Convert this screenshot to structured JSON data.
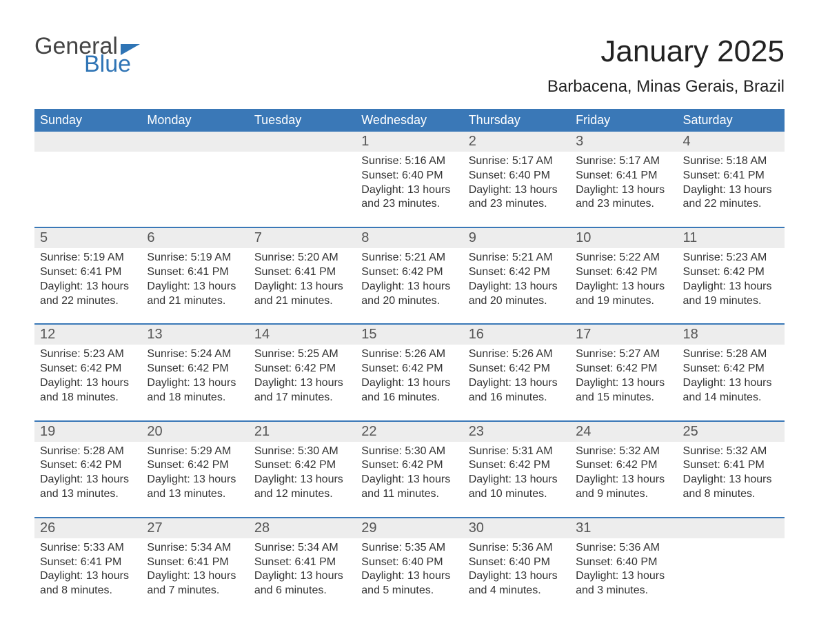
{
  "logo": {
    "line1": "General",
    "line2": "Blue"
  },
  "title": "January 2025",
  "location": "Barbacena, Minas Gerais, Brazil",
  "colors": {
    "header_bg": "#3a78b7",
    "header_text": "#ffffff",
    "daynum_bg": "#ededed",
    "daynum_text": "#555555",
    "body_text": "#333333",
    "rule": "#3a78b7",
    "logo_gray": "#444444",
    "logo_blue": "#2f74b5"
  },
  "fonts": {
    "title_pt": 44,
    "location_pt": 24,
    "dow_pt": 18,
    "daynum_pt": 20,
    "body_pt": 16
  },
  "dow": [
    "Sunday",
    "Monday",
    "Tuesday",
    "Wednesday",
    "Thursday",
    "Friday",
    "Saturday"
  ],
  "weeks": [
    [
      null,
      null,
      null,
      {
        "n": "1",
        "sr": "5:16 AM",
        "ss": "6:40 PM",
        "dl": "13 hours and 23 minutes."
      },
      {
        "n": "2",
        "sr": "5:17 AM",
        "ss": "6:40 PM",
        "dl": "13 hours and 23 minutes."
      },
      {
        "n": "3",
        "sr": "5:17 AM",
        "ss": "6:41 PM",
        "dl": "13 hours and 23 minutes."
      },
      {
        "n": "4",
        "sr": "5:18 AM",
        "ss": "6:41 PM",
        "dl": "13 hours and 22 minutes."
      }
    ],
    [
      {
        "n": "5",
        "sr": "5:19 AM",
        "ss": "6:41 PM",
        "dl": "13 hours and 22 minutes."
      },
      {
        "n": "6",
        "sr": "5:19 AM",
        "ss": "6:41 PM",
        "dl": "13 hours and 21 minutes."
      },
      {
        "n": "7",
        "sr": "5:20 AM",
        "ss": "6:41 PM",
        "dl": "13 hours and 21 minutes."
      },
      {
        "n": "8",
        "sr": "5:21 AM",
        "ss": "6:42 PM",
        "dl": "13 hours and 20 minutes."
      },
      {
        "n": "9",
        "sr": "5:21 AM",
        "ss": "6:42 PM",
        "dl": "13 hours and 20 minutes."
      },
      {
        "n": "10",
        "sr": "5:22 AM",
        "ss": "6:42 PM",
        "dl": "13 hours and 19 minutes."
      },
      {
        "n": "11",
        "sr": "5:23 AM",
        "ss": "6:42 PM",
        "dl": "13 hours and 19 minutes."
      }
    ],
    [
      {
        "n": "12",
        "sr": "5:23 AM",
        "ss": "6:42 PM",
        "dl": "13 hours and 18 minutes."
      },
      {
        "n": "13",
        "sr": "5:24 AM",
        "ss": "6:42 PM",
        "dl": "13 hours and 18 minutes."
      },
      {
        "n": "14",
        "sr": "5:25 AM",
        "ss": "6:42 PM",
        "dl": "13 hours and 17 minutes."
      },
      {
        "n": "15",
        "sr": "5:26 AM",
        "ss": "6:42 PM",
        "dl": "13 hours and 16 minutes."
      },
      {
        "n": "16",
        "sr": "5:26 AM",
        "ss": "6:42 PM",
        "dl": "13 hours and 16 minutes."
      },
      {
        "n": "17",
        "sr": "5:27 AM",
        "ss": "6:42 PM",
        "dl": "13 hours and 15 minutes."
      },
      {
        "n": "18",
        "sr": "5:28 AM",
        "ss": "6:42 PM",
        "dl": "13 hours and 14 minutes."
      }
    ],
    [
      {
        "n": "19",
        "sr": "5:28 AM",
        "ss": "6:42 PM",
        "dl": "13 hours and 13 minutes."
      },
      {
        "n": "20",
        "sr": "5:29 AM",
        "ss": "6:42 PM",
        "dl": "13 hours and 13 minutes."
      },
      {
        "n": "21",
        "sr": "5:30 AM",
        "ss": "6:42 PM",
        "dl": "13 hours and 12 minutes."
      },
      {
        "n": "22",
        "sr": "5:30 AM",
        "ss": "6:42 PM",
        "dl": "13 hours and 11 minutes."
      },
      {
        "n": "23",
        "sr": "5:31 AM",
        "ss": "6:42 PM",
        "dl": "13 hours and 10 minutes."
      },
      {
        "n": "24",
        "sr": "5:32 AM",
        "ss": "6:42 PM",
        "dl": "13 hours and 9 minutes."
      },
      {
        "n": "25",
        "sr": "5:32 AM",
        "ss": "6:41 PM",
        "dl": "13 hours and 8 minutes."
      }
    ],
    [
      {
        "n": "26",
        "sr": "5:33 AM",
        "ss": "6:41 PM",
        "dl": "13 hours and 8 minutes."
      },
      {
        "n": "27",
        "sr": "5:34 AM",
        "ss": "6:41 PM",
        "dl": "13 hours and 7 minutes."
      },
      {
        "n": "28",
        "sr": "5:34 AM",
        "ss": "6:41 PM",
        "dl": "13 hours and 6 minutes."
      },
      {
        "n": "29",
        "sr": "5:35 AM",
        "ss": "6:40 PM",
        "dl": "13 hours and 5 minutes."
      },
      {
        "n": "30",
        "sr": "5:36 AM",
        "ss": "6:40 PM",
        "dl": "13 hours and 4 minutes."
      },
      {
        "n": "31",
        "sr": "5:36 AM",
        "ss": "6:40 PM",
        "dl": "13 hours and 3 minutes."
      },
      null
    ]
  ],
  "labels": {
    "sunrise": "Sunrise: ",
    "sunset": "Sunset: ",
    "daylight": "Daylight: "
  }
}
